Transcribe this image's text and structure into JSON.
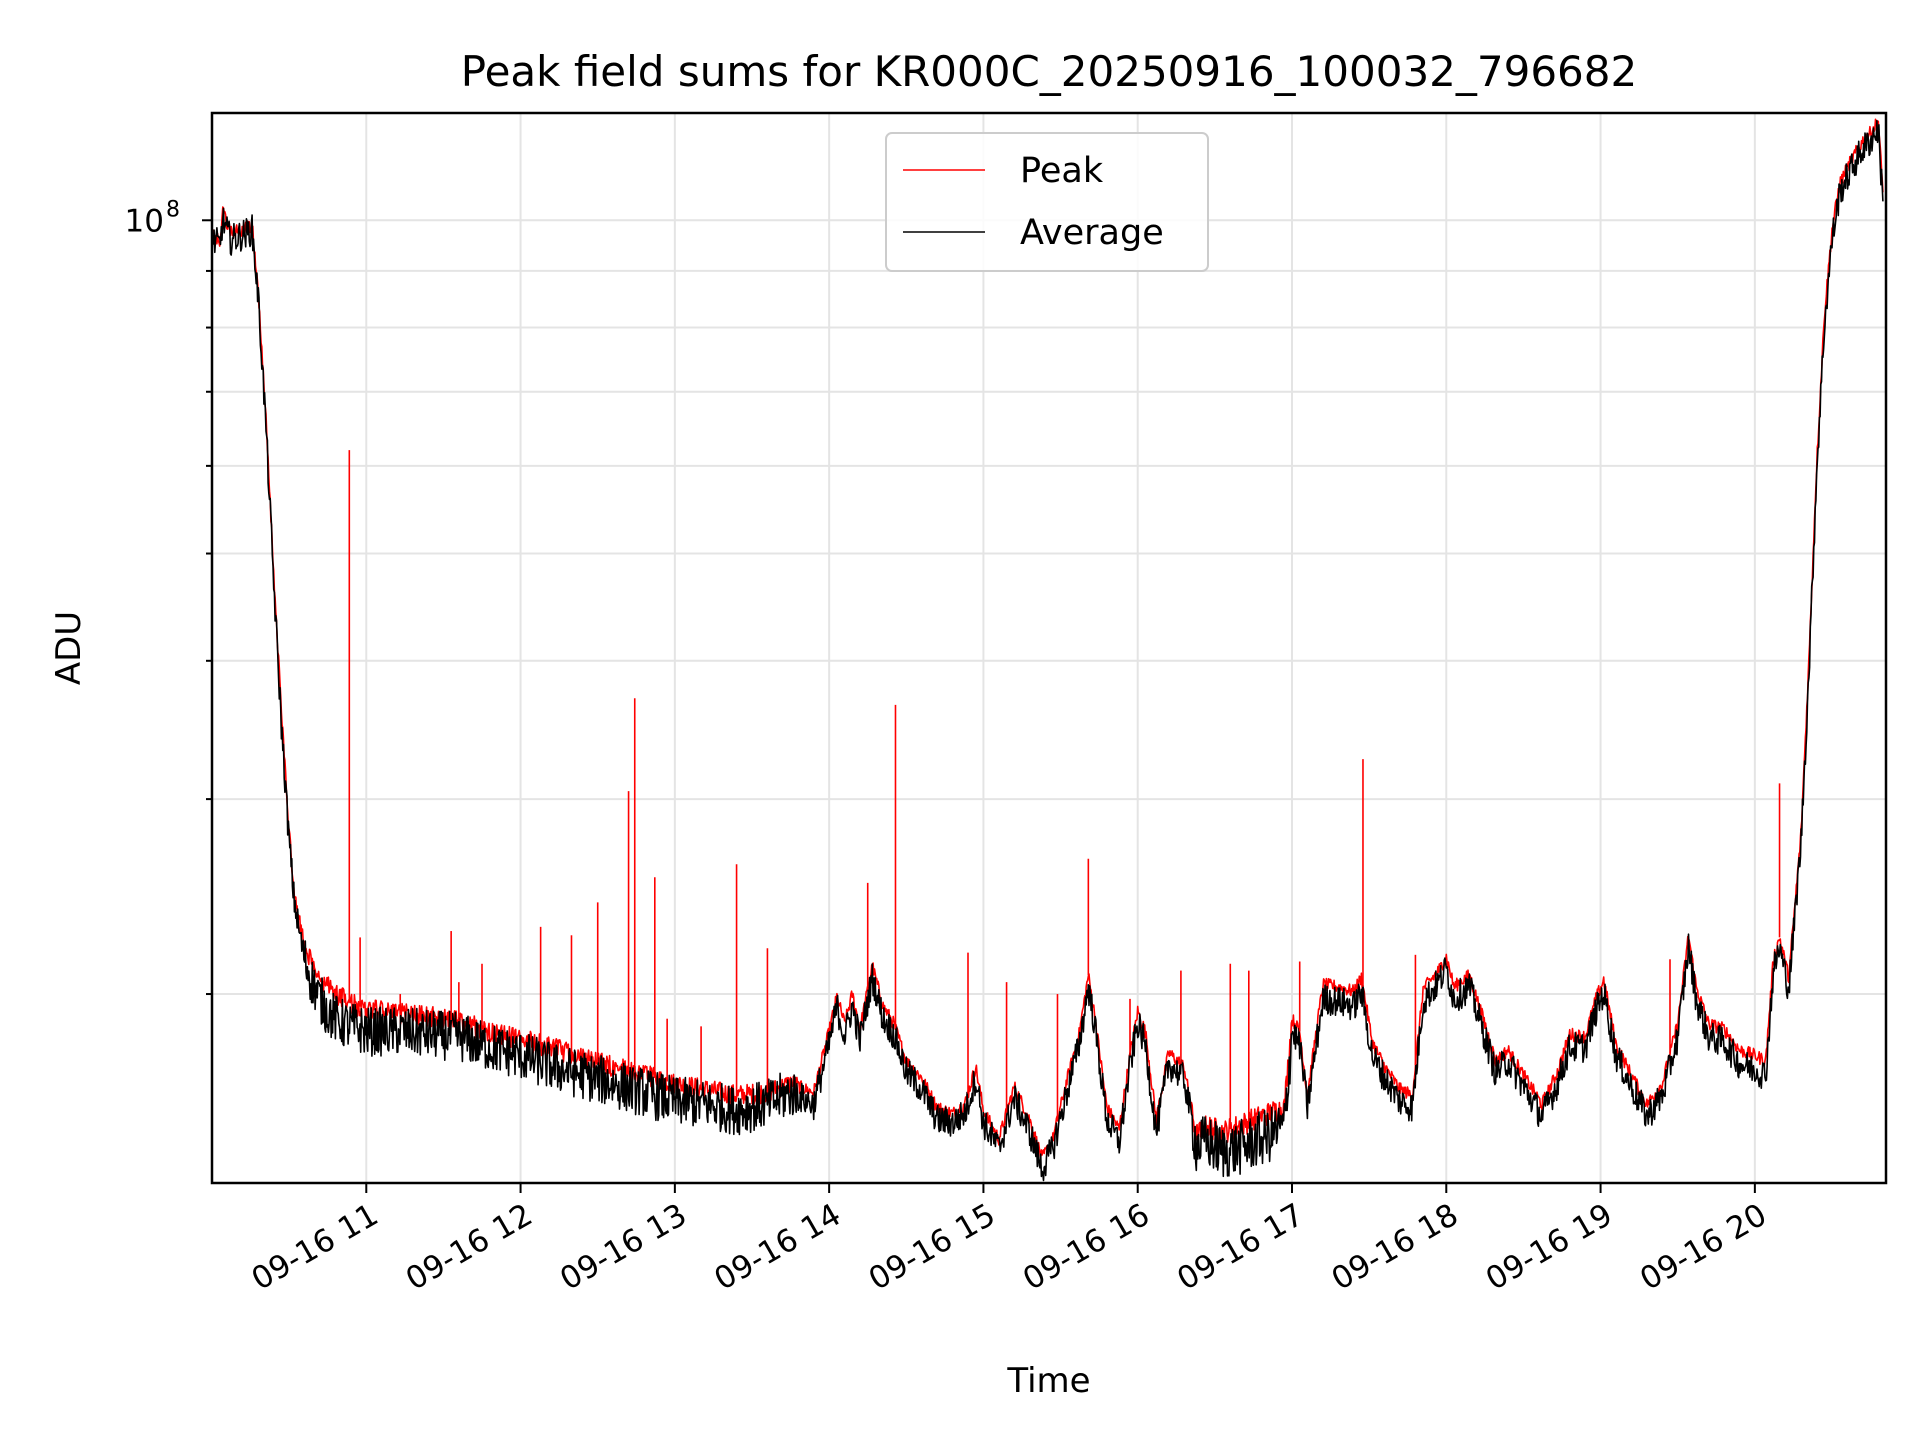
{
  "chart_data": {
    "type": "line",
    "title": "Peak field sums for KR000C_20250916_100032_796682",
    "xlabel": "Time",
    "ylabel": "ADU",
    "x_ticks": [
      "09-16 11",
      "09-16 12",
      "09-16 13",
      "09-16 14",
      "09-16 15",
      "09-16 16",
      "09-16 17",
      "09-16 18",
      "09-16 19",
      "09-16 20"
    ],
    "y_ticks": [
      {
        "value": 100000000,
        "base": "10",
        "exponent": "8"
      }
    ],
    "x_range_hours": [
      10.0,
      20.85
    ],
    "ylim": [
      13500000,
      125000000
    ],
    "yscale": "log",
    "grid": true,
    "legend": "upper center",
    "series": [
      {
        "name": "Peak",
        "color": "#ff0000",
        "points": [
          [
            10.0,
            97000000
          ],
          [
            10.05,
            96000000
          ],
          [
            10.07,
            102000000
          ],
          [
            10.12,
            97500000
          ],
          [
            10.2,
            98000000
          ],
          [
            10.26,
            99000000
          ],
          [
            10.3,
            86000000
          ],
          [
            10.35,
            66000000
          ],
          [
            10.4,
            48000000
          ],
          [
            10.45,
            36000000
          ],
          [
            10.5,
            28000000
          ],
          [
            10.53,
            25000000
          ],
          [
            10.56,
            23500000
          ],
          [
            10.6,
            22200000
          ],
          [
            10.65,
            21300000
          ],
          [
            10.7,
            20700000
          ],
          [
            10.75,
            20300000
          ],
          [
            10.8,
            20000000
          ],
          [
            10.85,
            19800000
          ],
          [
            10.9,
            19600000
          ],
          [
            11.0,
            19400000
          ],
          [
            11.2,
            19200000
          ],
          [
            11.4,
            19100000
          ],
          [
            11.6,
            18900000
          ],
          [
            11.8,
            18500000
          ],
          [
            12.0,
            18200000
          ],
          [
            12.2,
            17900000
          ],
          [
            12.4,
            17500000
          ],
          [
            12.6,
            17200000
          ],
          [
            12.8,
            16900000
          ],
          [
            13.0,
            16600000
          ],
          [
            13.2,
            16400000
          ],
          [
            13.4,
            16200000
          ],
          [
            13.6,
            16300000
          ],
          [
            13.75,
            16600000
          ],
          [
            13.9,
            16300000
          ],
          [
            14.0,
            18500000
          ],
          [
            14.05,
            19900000
          ],
          [
            14.1,
            18800000
          ],
          [
            14.15,
            20000000
          ],
          [
            14.2,
            18600000
          ],
          [
            14.28,
            21200000
          ],
          [
            14.35,
            19500000
          ],
          [
            14.42,
            18800000
          ],
          [
            14.5,
            17400000
          ],
          [
            14.6,
            16800000
          ],
          [
            14.7,
            15800000
          ],
          [
            14.8,
            15600000
          ],
          [
            14.88,
            15900000
          ],
          [
            14.95,
            17200000
          ],
          [
            15.0,
            15700000
          ],
          [
            15.1,
            14800000
          ],
          [
            15.2,
            16500000
          ],
          [
            15.3,
            15400000
          ],
          [
            15.38,
            14200000
          ],
          [
            15.45,
            14800000
          ],
          [
            15.55,
            16900000
          ],
          [
            15.62,
            18400000
          ],
          [
            15.68,
            20800000
          ],
          [
            15.72,
            19200000
          ],
          [
            15.8,
            15800000
          ],
          [
            15.88,
            15100000
          ],
          [
            15.95,
            17600000
          ],
          [
            16.0,
            19300000
          ],
          [
            16.05,
            18500000
          ],
          [
            16.12,
            15400000
          ],
          [
            16.2,
            17700000
          ],
          [
            16.3,
            17200000
          ],
          [
            16.38,
            14900000
          ],
          [
            16.45,
            15200000
          ],
          [
            16.55,
            15000000
          ],
          [
            16.65,
            15200000
          ],
          [
            16.75,
            15400000
          ],
          [
            16.85,
            15600000
          ],
          [
            16.95,
            15800000
          ],
          [
            17.0,
            19000000
          ],
          [
            17.05,
            18500000
          ],
          [
            17.1,
            16200000
          ],
          [
            17.2,
            20400000
          ],
          [
            17.3,
            20300000
          ],
          [
            17.4,
            20100000
          ],
          [
            17.45,
            20700000
          ],
          [
            17.52,
            18100000
          ],
          [
            17.6,
            17200000
          ],
          [
            17.7,
            16400000
          ],
          [
            17.78,
            16200000
          ],
          [
            17.85,
            20200000
          ],
          [
            17.95,
            21000000
          ],
          [
            18.0,
            21600000
          ],
          [
            18.05,
            20300000
          ],
          [
            18.15,
            20800000
          ],
          [
            18.25,
            18800000
          ],
          [
            18.32,
            17400000
          ],
          [
            18.4,
            17800000
          ],
          [
            18.5,
            16900000
          ],
          [
            18.62,
            15900000
          ],
          [
            18.72,
            17000000
          ],
          [
            18.8,
            18400000
          ],
          [
            18.9,
            18300000
          ],
          [
            18.97,
            19800000
          ],
          [
            19.02,
            20600000
          ],
          [
            19.1,
            18000000
          ],
          [
            19.2,
            16900000
          ],
          [
            19.3,
            15900000
          ],
          [
            19.4,
            16600000
          ],
          [
            19.5,
            18800000
          ],
          [
            19.57,
            22600000
          ],
          [
            19.62,
            20300000
          ],
          [
            19.7,
            18800000
          ],
          [
            19.8,
            18600000
          ],
          [
            19.9,
            17800000
          ],
          [
            20.0,
            17600000
          ],
          [
            20.07,
            17400000
          ],
          [
            20.12,
            21500000
          ],
          [
            20.16,
            22500000
          ],
          [
            20.22,
            20700000
          ],
          [
            20.3,
            28000000
          ],
          [
            20.35,
            40000000
          ],
          [
            20.4,
            60000000
          ],
          [
            20.45,
            82000000
          ],
          [
            20.5,
            98000000
          ],
          [
            20.55,
            108000000
          ],
          [
            20.62,
            113000000
          ],
          [
            20.7,
            118000000
          ],
          [
            20.75,
            120000000
          ],
          [
            20.8,
            123000000
          ],
          [
            20.83,
            106000000
          ]
        ]
      },
      {
        "name": "Average",
        "color": "#000000",
        "points": [
          [
            10.0,
            96000000
          ],
          [
            10.05,
            95000000
          ],
          [
            10.07,
            100000000
          ],
          [
            10.12,
            96000000
          ],
          [
            10.2,
            97000000
          ],
          [
            10.26,
            98000000
          ],
          [
            10.3,
            85000000
          ],
          [
            10.35,
            65000000
          ],
          [
            10.4,
            47000000
          ],
          [
            10.45,
            35000000
          ],
          [
            10.5,
            27500000
          ],
          [
            10.53,
            24500000
          ],
          [
            10.56,
            23000000
          ],
          [
            10.6,
            21500000
          ],
          [
            10.65,
            20500000
          ],
          [
            10.7,
            19800000
          ],
          [
            10.75,
            19300000
          ],
          [
            10.8,
            19000000
          ],
          [
            10.85,
            18800000
          ],
          [
            10.9,
            18700000
          ],
          [
            11.0,
            18500000
          ],
          [
            11.2,
            18500000
          ],
          [
            11.4,
            18400000
          ],
          [
            11.6,
            18300000
          ],
          [
            11.8,
            17900000
          ],
          [
            12.0,
            17600000
          ],
          [
            12.2,
            17200000
          ],
          [
            12.4,
            16900000
          ],
          [
            12.6,
            16600000
          ],
          [
            12.8,
            16300000
          ],
          [
            13.0,
            16000000
          ],
          [
            13.2,
            15900000
          ],
          [
            13.4,
            15700000
          ],
          [
            13.6,
            15900000
          ],
          [
            13.75,
            16300000
          ],
          [
            13.9,
            15900000
          ],
          [
            14.0,
            18000000
          ],
          [
            14.05,
            19500000
          ],
          [
            14.1,
            18300000
          ],
          [
            14.15,
            19500000
          ],
          [
            14.2,
            18200000
          ],
          [
            14.28,
            20700000
          ],
          [
            14.35,
            19000000
          ],
          [
            14.42,
            18400000
          ],
          [
            14.5,
            17000000
          ],
          [
            14.6,
            16400000
          ],
          [
            14.7,
            15400000
          ],
          [
            14.8,
            15300000
          ],
          [
            14.88,
            15600000
          ],
          [
            14.95,
            16800000
          ],
          [
            15.0,
            15300000
          ],
          [
            15.1,
            14500000
          ],
          [
            15.2,
            16100000
          ],
          [
            15.3,
            15000000
          ],
          [
            15.38,
            13900000
          ],
          [
            15.45,
            14500000
          ],
          [
            15.55,
            16500000
          ],
          [
            15.62,
            18000000
          ],
          [
            15.68,
            20300000
          ],
          [
            15.72,
            18800000
          ],
          [
            15.8,
            15400000
          ],
          [
            15.88,
            14700000
          ],
          [
            15.95,
            17200000
          ],
          [
            16.0,
            18800000
          ],
          [
            16.05,
            18000000
          ],
          [
            16.12,
            15000000
          ],
          [
            16.2,
            17300000
          ],
          [
            16.3,
            16800000
          ],
          [
            16.38,
            14600000
          ],
          [
            16.45,
            14700000
          ],
          [
            16.55,
            14400000
          ],
          [
            16.65,
            14500000
          ],
          [
            16.75,
            14700000
          ],
          [
            16.85,
            14900000
          ],
          [
            16.95,
            15200000
          ],
          [
            17.0,
            18500000
          ],
          [
            17.05,
            18000000
          ],
          [
            17.1,
            15800000
          ],
          [
            17.2,
            19800000
          ],
          [
            17.3,
            19700000
          ],
          [
            17.4,
            19500000
          ],
          [
            17.45,
            20100000
          ],
          [
            17.52,
            17600000
          ],
          [
            17.6,
            16800000
          ],
          [
            17.7,
            16000000
          ],
          [
            17.78,
            15800000
          ],
          [
            17.85,
            19700000
          ],
          [
            17.95,
            20500000
          ],
          [
            18.0,
            21100000
          ],
          [
            18.05,
            19800000
          ],
          [
            18.15,
            20300000
          ],
          [
            18.25,
            18300000
          ],
          [
            18.32,
            17000000
          ],
          [
            18.4,
            17400000
          ],
          [
            18.5,
            16500000
          ],
          [
            18.62,
            15500000
          ],
          [
            18.72,
            16600000
          ],
          [
            18.8,
            17900000
          ],
          [
            18.9,
            17900000
          ],
          [
            18.97,
            19300000
          ],
          [
            19.02,
            20100000
          ],
          [
            19.1,
            17600000
          ],
          [
            19.2,
            16500000
          ],
          [
            19.3,
            15500000
          ],
          [
            19.4,
            16200000
          ],
          [
            19.5,
            18300000
          ],
          [
            19.57,
            22100000
          ],
          [
            19.62,
            19800000
          ],
          [
            19.7,
            18300000
          ],
          [
            19.8,
            18100000
          ],
          [
            19.9,
            17300000
          ],
          [
            20.0,
            17100000
          ],
          [
            20.07,
            16900000
          ],
          [
            20.12,
            21000000
          ],
          [
            20.16,
            22000000
          ],
          [
            20.22,
            20200000
          ],
          [
            20.3,
            27500000
          ],
          [
            20.35,
            39000000
          ],
          [
            20.4,
            59000000
          ],
          [
            20.45,
            80000000
          ],
          [
            20.5,
            96000000
          ],
          [
            20.55,
            106000000
          ],
          [
            20.62,
            111000000
          ],
          [
            20.7,
            116000000
          ],
          [
            20.75,
            118000000
          ],
          [
            20.8,
            121000000
          ],
          [
            20.83,
            104000000
          ]
        ]
      }
    ],
    "spikes": [
      [
        10.89,
        62000000
      ],
      [
        10.96,
        22500000
      ],
      [
        11.22,
        20000000
      ],
      [
        11.55,
        22800000
      ],
      [
        11.6,
        20500000
      ],
      [
        11.75,
        21300000
      ],
      [
        12.13,
        23000000
      ],
      [
        12.33,
        22600000
      ],
      [
        12.5,
        24200000
      ],
      [
        12.7,
        30500000
      ],
      [
        12.74,
        37000000
      ],
      [
        12.87,
        25500000
      ],
      [
        12.95,
        19000000
      ],
      [
        13.17,
        18700000
      ],
      [
        13.4,
        26200000
      ],
      [
        13.6,
        22000000
      ],
      [
        14.25,
        25200000
      ],
      [
        14.43,
        36500000
      ],
      [
        14.9,
        21800000
      ],
      [
        15.15,
        20500000
      ],
      [
        15.48,
        20000000
      ],
      [
        15.68,
        26500000
      ],
      [
        15.95,
        19800000
      ],
      [
        16.28,
        21000000
      ],
      [
        16.6,
        21300000
      ],
      [
        16.72,
        21000000
      ],
      [
        17.05,
        21400000
      ],
      [
        17.46,
        32600000
      ],
      [
        17.8,
        21700000
      ],
      [
        19.45,
        21500000
      ],
      [
        20.16,
        31000000
      ]
    ]
  }
}
